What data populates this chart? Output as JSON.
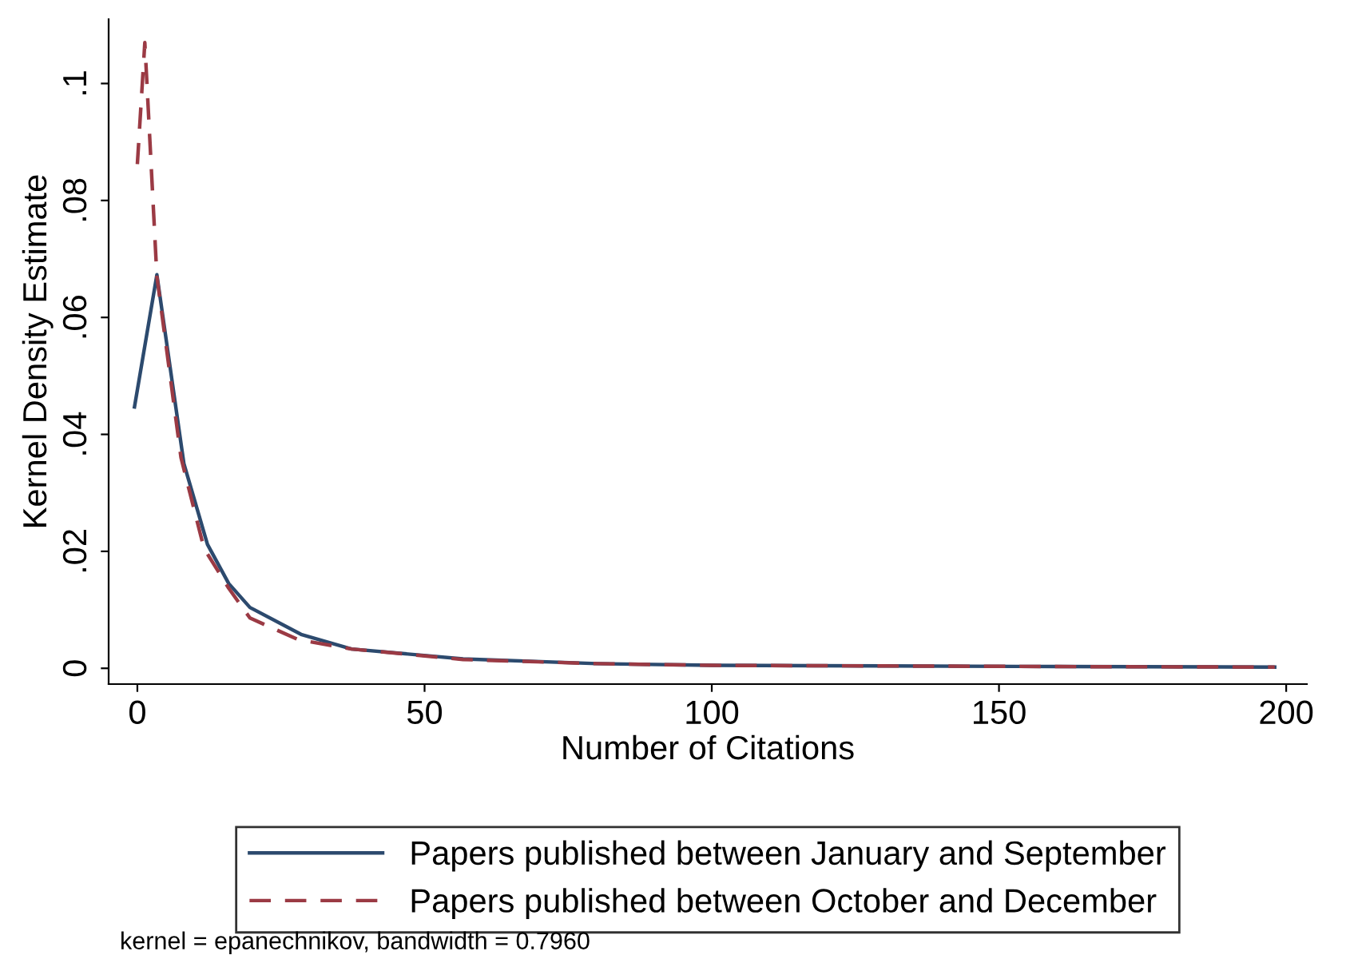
{
  "chart_data": {
    "type": "line",
    "xlabel": "Number of Citations",
    "ylabel": "Kernel Density Estimate",
    "annotations": [
      "kernel = epanechnikov, bandwidth = 0.7960"
    ],
    "xlim": [
      -5,
      203.6
    ],
    "ylim": [
      -0.0027,
      0.111
    ],
    "xticks": [
      0,
      50,
      100,
      150,
      200
    ],
    "yticks": [
      0,
      {
        "value": 0.02,
        "label": ".02"
      },
      {
        "value": 0.04,
        "label": ".04"
      },
      {
        "value": 0.06,
        "label": ".06"
      },
      {
        "value": 0.08,
        "label": ".08"
      },
      {
        "value": 0.1,
        "label": ".1"
      }
    ],
    "grid": false,
    "legend": "bottom",
    "series": [
      {
        "name": "Papers published between January and September",
        "color": "#2c4a6e",
        "line_style": "solid",
        "x": [
          -0.5,
          3.4,
          8.1,
          12.2,
          15.9,
          19.6,
          28.5,
          37.3,
          56.7,
          80,
          100,
          130,
          160,
          198
        ],
        "values": [
          0.0447,
          0.0673,
          0.035,
          0.0212,
          0.0145,
          0.0104,
          0.0058,
          0.0033,
          0.0016,
          0.0008,
          0.0005,
          0.0004,
          0.0003,
          0.0002
        ]
      },
      {
        "name": "Papers published between October and December",
        "color": "#9b3a44",
        "line_style": "dashed",
        "x": [
          0,
          1.3,
          3.4,
          7.6,
          11.6,
          15.9,
          19.6,
          28,
          37.3,
          56.7,
          80,
          100,
          130,
          160,
          198
        ],
        "values": [
          0.0862,
          0.107,
          0.067,
          0.036,
          0.0205,
          0.0137,
          0.0086,
          0.0049,
          0.0033,
          0.0015,
          0.0008,
          0.0005,
          0.0004,
          0.0003,
          0.0002
        ]
      }
    ]
  }
}
